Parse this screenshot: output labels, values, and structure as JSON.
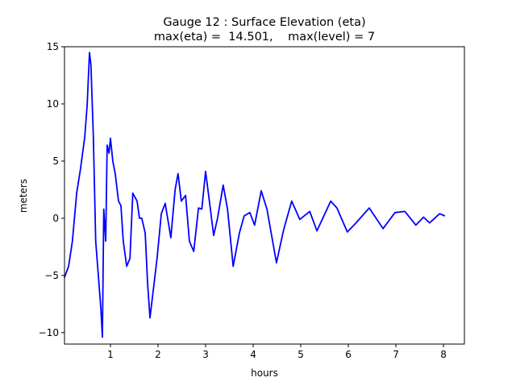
{
  "chart_data": {
    "type": "line",
    "title": "Gauge 12 : Surface Elevation (eta)",
    "subtitle": "max(eta) =  14.501,    max(level) = 7",
    "xlabel": "hours",
    "ylabel": "meters",
    "xlim": [
      0.034,
      8.44
    ],
    "ylim": [
      -11,
      15
    ],
    "xticks": [
      1,
      2,
      3,
      4,
      5,
      6,
      7,
      8
    ],
    "yticks": [
      -10,
      -5,
      0,
      5,
      10,
      15
    ],
    "grid": false,
    "series": [
      {
        "name": "eta",
        "color": "#0000ff",
        "x": [
          0.03,
          0.12,
          0.2,
          0.29,
          0.37,
          0.46,
          0.51,
          0.56,
          0.59,
          0.64,
          0.69,
          0.75,
          0.8,
          0.83,
          0.86,
          0.9,
          0.93,
          0.97,
          1.0,
          1.05,
          1.1,
          1.17,
          1.22,
          1.27,
          1.34,
          1.41,
          1.47,
          1.56,
          1.61,
          1.66,
          1.73,
          1.78,
          1.83,
          1.9,
          1.98,
          2.07,
          2.15,
          2.27,
          2.36,
          2.42,
          2.49,
          2.58,
          2.66,
          2.75,
          2.85,
          2.92,
          3.0,
          3.08,
          3.17,
          3.25,
          3.37,
          3.46,
          3.58,
          3.71,
          3.81,
          3.93,
          4.03,
          4.17,
          4.29,
          4.49,
          4.64,
          4.81,
          4.98,
          5.19,
          5.34,
          5.63,
          5.76,
          5.98,
          6.14,
          6.44,
          6.73,
          6.98,
          7.19,
          7.42,
          7.58,
          7.71,
          7.92,
          8.03
        ],
        "y": [
          -5.2,
          -4.2,
          -2,
          2.2,
          4.3,
          7.1,
          9.9,
          14.5,
          13.4,
          7.1,
          -2,
          -5.2,
          -8,
          -10.4,
          0.8,
          -2,
          6.4,
          5.7,
          7,
          5,
          3.9,
          1.5,
          1.1,
          -2,
          -4.2,
          -3.5,
          2.2,
          1.5,
          0,
          0,
          -1.3,
          -5.6,
          -8.7,
          -6.3,
          -3.5,
          0.4,
          1.3,
          -1.7,
          2.5,
          3.9,
          1.5,
          2,
          -2,
          -2.9,
          0.9,
          0.8,
          4.1,
          1.5,
          -1.5,
          0,
          2.9,
          0.8,
          -4.2,
          -1.3,
          0.2,
          0.5,
          -0.6,
          2.4,
          0.8,
          -3.9,
          -1,
          1.5,
          -0.1,
          0.6,
          -1.1,
          1.5,
          0.9,
          -1.2,
          -0.5,
          0.9,
          -0.9,
          0.5,
          0.6,
          -0.6,
          0.1,
          -0.4,
          0.4,
          0.2
        ]
      }
    ]
  }
}
